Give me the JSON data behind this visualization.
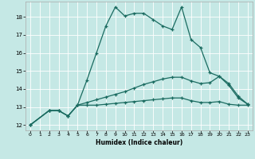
{
  "xlabel": "Humidex (Indice chaleur)",
  "xlim": [
    -0.5,
    23.5
  ],
  "ylim": [
    11.7,
    18.85
  ],
  "xticks": [
    0,
    1,
    2,
    3,
    4,
    5,
    6,
    7,
    8,
    9,
    10,
    11,
    12,
    13,
    14,
    15,
    16,
    17,
    18,
    19,
    20,
    21,
    22,
    23
  ],
  "yticks": [
    12,
    13,
    14,
    15,
    16,
    17,
    18
  ],
  "bg_color": "#c5e8e5",
  "line_color": "#1a6b60",
  "grid_color": "#ffffff",
  "line1_x": [
    0,
    2,
    3,
    4,
    5,
    6,
    7,
    8,
    9,
    10,
    11,
    12,
    13,
    14,
    15,
    16,
    17,
    18,
    19,
    20,
    21,
    22,
    23
  ],
  "line1_y": [
    12.0,
    12.8,
    12.8,
    12.5,
    13.1,
    14.5,
    16.0,
    17.5,
    18.55,
    18.05,
    18.2,
    18.2,
    17.85,
    17.5,
    17.3,
    18.55,
    16.75,
    16.3,
    14.9,
    14.7,
    14.2,
    13.5,
    13.15
  ],
  "line2_x": [
    0,
    2,
    3,
    4,
    5,
    6,
    7,
    8,
    9,
    10,
    11,
    12,
    13,
    14,
    15,
    16,
    17,
    18,
    19,
    20,
    21,
    22,
    23
  ],
  "line2_y": [
    12.0,
    12.8,
    12.8,
    12.5,
    13.1,
    13.25,
    13.4,
    13.55,
    13.7,
    13.85,
    14.05,
    14.25,
    14.4,
    14.55,
    14.65,
    14.65,
    14.45,
    14.3,
    14.35,
    14.7,
    14.3,
    13.6,
    13.15
  ],
  "line3_x": [
    0,
    2,
    3,
    4,
    5,
    6,
    7,
    8,
    9,
    10,
    11,
    12,
    13,
    14,
    15,
    16,
    17,
    18,
    19,
    20,
    21,
    22,
    23
  ],
  "line3_y": [
    12.0,
    12.8,
    12.8,
    12.5,
    13.1,
    13.1,
    13.1,
    13.15,
    13.2,
    13.25,
    13.3,
    13.35,
    13.4,
    13.45,
    13.5,
    13.5,
    13.35,
    13.25,
    13.25,
    13.3,
    13.15,
    13.1,
    13.1
  ]
}
